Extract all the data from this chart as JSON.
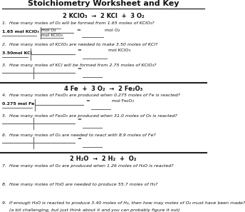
{
  "title": "Stoichiometry Worksheet and Key",
  "bg_color": "#ffffff",
  "section1_eq": "2 KClO₃  →  2 KCl  +  3 O₂",
  "section2_eq": "4 Fe  +  3 O₂  →  2 Fe₂O₃",
  "section3_eq": "2 H₂O  →  2 H₂  +  O₂",
  "q1": "1.  How many moles of O₂ will be formed from 1.65 moles of KClO₃?",
  "q2": "2.  How many moles of KClO₃ are needed to make 3.50 moles of KCl?",
  "q3": "3.  How many moles of KCl will be formed from 2.75 moles of KClO₃?",
  "q4": "4.  How many moles of Fe₂O₃ are produced when 0.275 moles of Fe is reacted?",
  "q5": "5.  How many moles of Fe₂O₃ are produced when 31.0 moles of O₂ is reacted?",
  "q6": "6.  How many moles of O₂ are needed to react with 8.9 moles of Fe?",
  "q7": "7.  How many moles of O₂ are produced when 1.26 moles of H₂O is reacted?",
  "q8": "8.  How many moles of H₂O are needed to produce 55.7 moles of H₂?",
  "q9a": "9.  If enough H₂O is reacted to produce 3.40 moles of H₂, then how may moles of O₂ must have been made?",
  "q9b": "     (a bit challenging, but just think about it and you can probably figure it out)",
  "q1_left": "1.65 mol KClO₃",
  "q1_top": "mol O₂",
  "q1_bot": "mol KClO₃",
  "q1_res": "mol O₂",
  "q2_left": "3.50mol KCl",
  "q2_res": "mol KClO₃",
  "q4_left": "0.275 mol Fe",
  "q4_res": "mol Fe₂O₃",
  "line_color": "#666666",
  "sep_color": "#222222"
}
